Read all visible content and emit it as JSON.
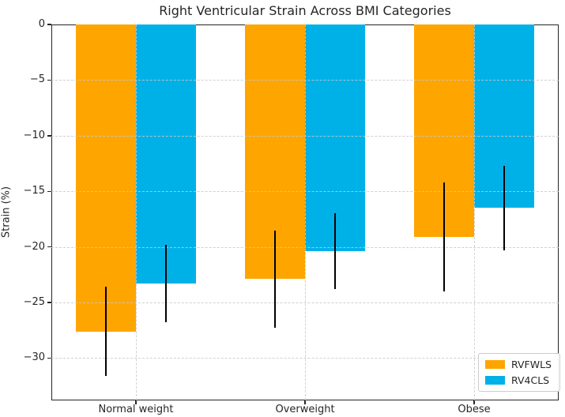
{
  "chart_data": {
    "type": "bar",
    "title": "Right Ventricular Strain Across BMI Categories",
    "xlabel": "",
    "ylabel": "Strain (%)",
    "categories": [
      "Normal weight",
      "Overweight",
      "Obese"
    ],
    "series": [
      {
        "name": "RVFWLS",
        "color": "#FFA500",
        "values": [
          -27.6,
          -22.9,
          -19.1
        ],
        "errors": [
          4.0,
          4.4,
          4.9
        ]
      },
      {
        "name": "RV4CLS",
        "color": "#00B1E8",
        "values": [
          -23.3,
          -20.4,
          -16.5
        ],
        "errors": [
          3.5,
          3.4,
          3.8
        ]
      }
    ],
    "ylim": [
      -33.8,
      0
    ],
    "yticks": [
      0,
      -5,
      -10,
      -15,
      -20,
      -25,
      -30
    ],
    "ytick_labels": [
      "0",
      "−5",
      "−10",
      "−15",
      "−20",
      "−25",
      "−30"
    ],
    "grid": true,
    "grid_style": "dashed",
    "legend_position": "lower right",
    "error_bar_color": "#000000",
    "axis_color": "#262626"
  }
}
